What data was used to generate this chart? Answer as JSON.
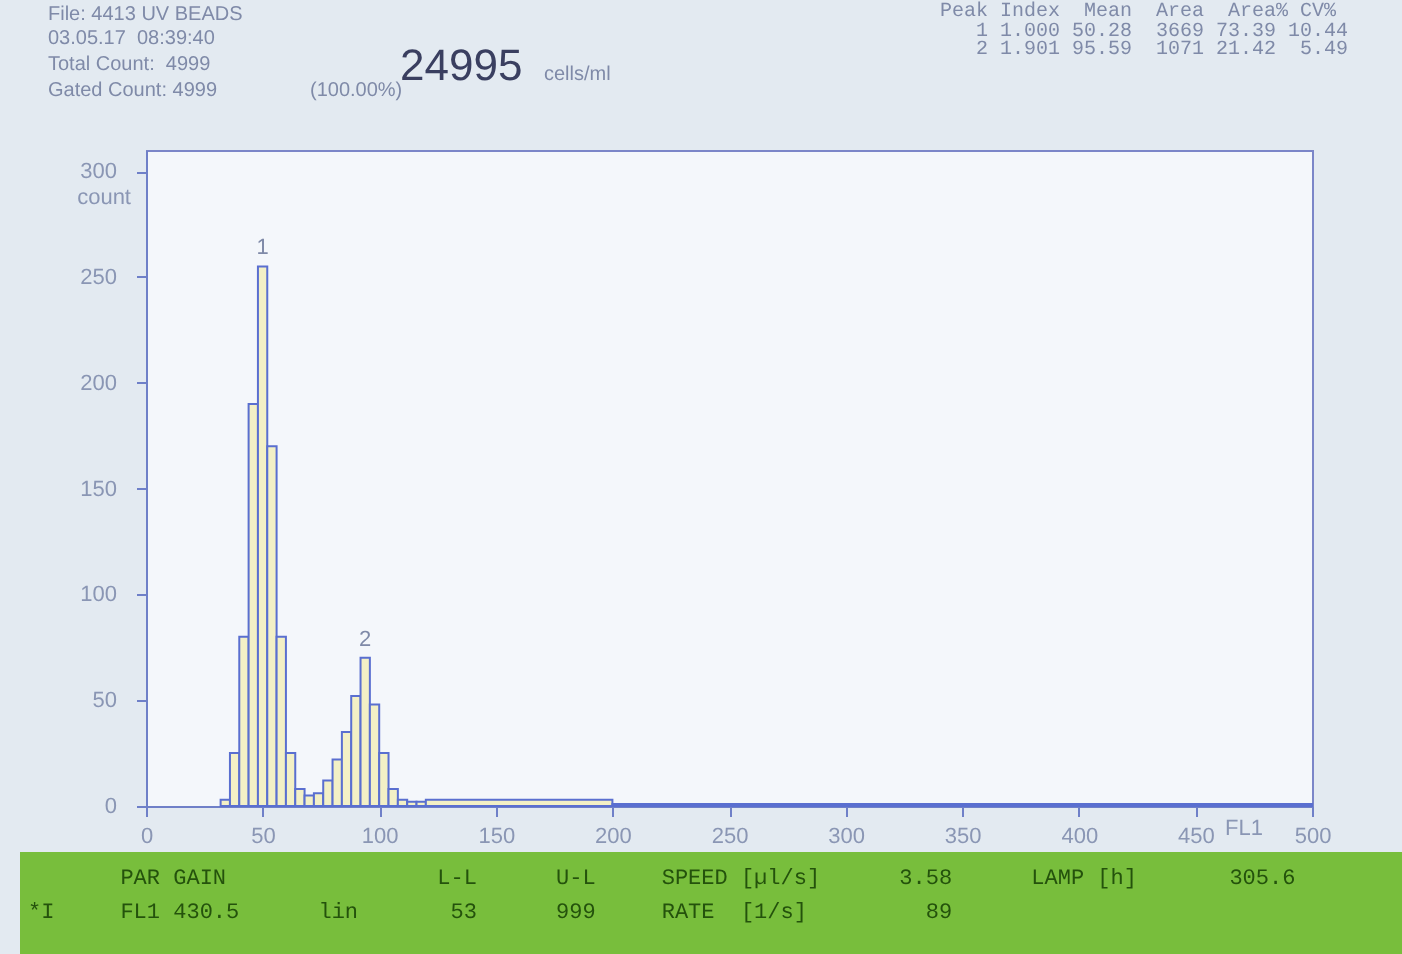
{
  "chart_data": {
    "type": "histogram",
    "title": "File: 4413 UV BEADS",
    "xlabel": "FL1",
    "ylabel": "count",
    "bins": [
      32,
      36,
      40,
      44,
      48,
      52,
      56,
      60,
      64,
      68,
      72,
      76,
      80,
      84,
      88,
      92,
      96,
      100,
      104,
      108,
      112,
      116,
      120,
      200,
      500
    ],
    "values": [
      3,
      25,
      80,
      190,
      255,
      170,
      80,
      25,
      8,
      5,
      6,
      12,
      22,
      35,
      52,
      70,
      48,
      25,
      8,
      3,
      2,
      2,
      3,
      1
    ],
    "color": "#f3f0c6",
    "xlim": [
      0,
      500
    ],
    "xticks": [
      0,
      50,
      100,
      150,
      200,
      250,
      300,
      350,
      400,
      450,
      500
    ],
    "ylim": [
      0,
      310
    ],
    "yticks": [
      0,
      50,
      100,
      150,
      200,
      250,
      300
    ],
    "grid": false,
    "annotations": [
      {
        "text": "1",
        "x": 50,
        "y": 255
      },
      {
        "text": "2",
        "x": 94,
        "y": 70
      },
      "03.05.17  08:39:40",
      "Total Count:  4999",
      "Gated Count: 4999",
      "24995",
      "cells/ml",
      "(100.00%)",
      "Peak Index  Mean  Area  Area% CV%",
      "   1 1.000 50.28  3669 73.39 10.44",
      "   2 1.901 95.59  1071 21.42  5.49",
      "       PAR GAIN                L-L      U-L     SPEED [µl/s]      3.58      LAMP [h]       305.6",
      "*I     FL1 430.5      lin       53      999     RATE  [1/s]         89"
    ]
  }
}
